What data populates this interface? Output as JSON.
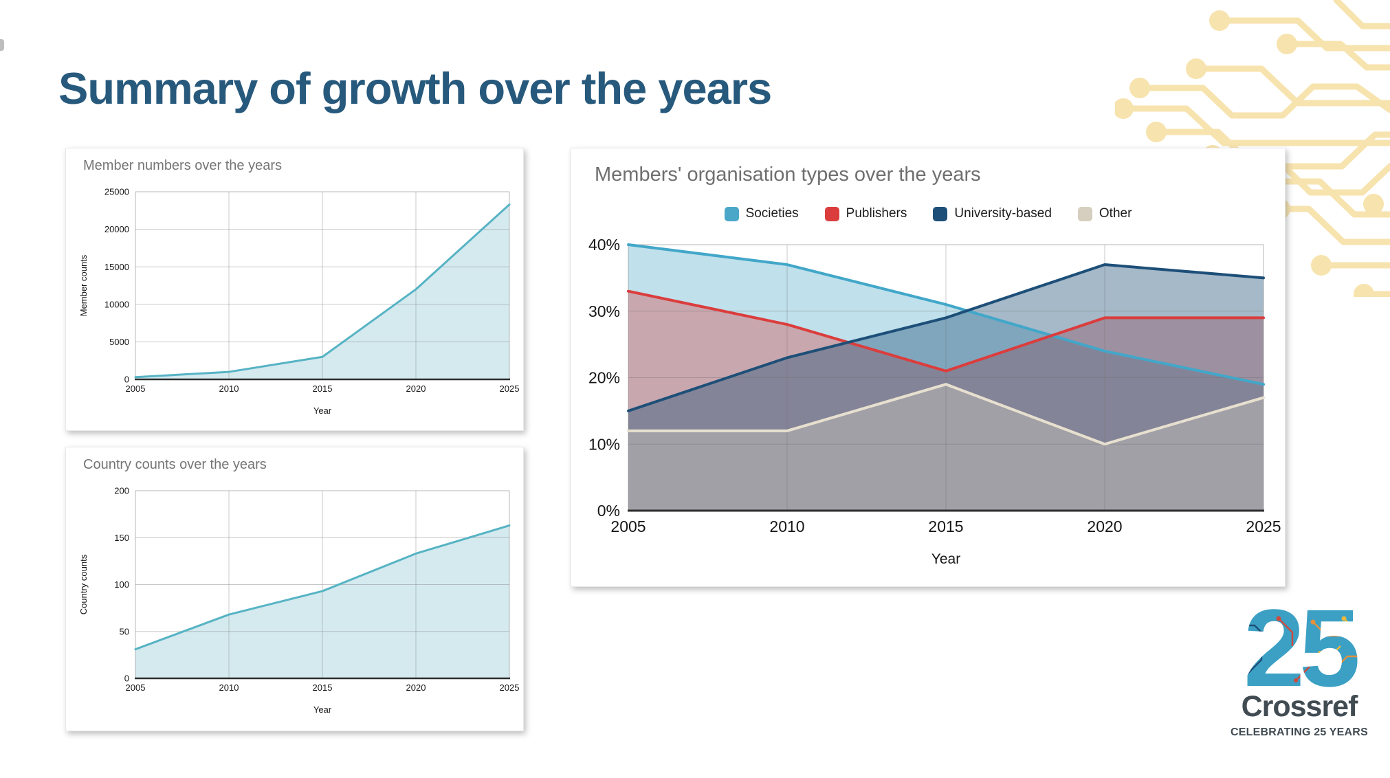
{
  "slide": {
    "title": "Summary of growth over the years"
  },
  "palette": {
    "title_color": "#27597c",
    "chart_title_gray": "#757575",
    "crossref_teal": "#3ba0c4",
    "crossref_dark": "#414b52",
    "circuit_yellow": "#f7e3ae"
  },
  "logo": {
    "number": "25",
    "wordmark": "Crossref",
    "tagline": "CELEBRATING 25 YEARS"
  },
  "chart_data": [
    {
      "id": "member-numbers",
      "type": "area",
      "title": "Member numbers over the years",
      "xlabel": "Year",
      "ylabel": "Member counts",
      "x": [
        2005,
        2010,
        2015,
        2020,
        2025
      ],
      "ylim": [
        0,
        25000
      ],
      "yticks": [
        0,
        5000,
        10000,
        15000,
        20000,
        25000
      ],
      "ytick_suffix": "",
      "grid": true,
      "legend": "none",
      "series": [
        {
          "name": "Member counts",
          "color": "#56b3c4",
          "swatch": "#56b3c4",
          "fill": "#a9d6e0",
          "fill_opacity": 0.5,
          "values": [
            300,
            1000,
            3000,
            12000,
            23300
          ]
        }
      ]
    },
    {
      "id": "country-counts",
      "type": "area",
      "title": "Country counts over the years",
      "xlabel": "Year",
      "ylabel": "Country counts",
      "x": [
        2005,
        2010,
        2015,
        2020,
        2025
      ],
      "ylim": [
        0,
        200
      ],
      "yticks": [
        0,
        50,
        100,
        150,
        200
      ],
      "ytick_suffix": "",
      "grid": true,
      "legend": "none",
      "series": [
        {
          "name": "Country counts",
          "color": "#56b3c4",
          "swatch": "#56b3c4",
          "fill": "#a9d6e0",
          "fill_opacity": 0.5,
          "values": [
            31,
            68,
            93,
            133,
            163
          ]
        }
      ]
    },
    {
      "id": "org-types",
      "type": "area",
      "title": "Members' organisation types over the years",
      "xlabel": "Year",
      "ylabel": "",
      "x": [
        2005,
        2010,
        2015,
        2020,
        2025
      ],
      "ylim": [
        0,
        40
      ],
      "yticks": [
        0,
        10,
        20,
        30,
        40
      ],
      "ytick_suffix": "%",
      "grid": true,
      "legend": "top",
      "series": [
        {
          "name": "Societies",
          "color": "#42a7c9",
          "swatch": "#4ba7c7",
          "fill": "#4ba7c7",
          "fill_opacity": 0.35,
          "values": [
            40,
            37,
            31,
            24,
            19
          ]
        },
        {
          "name": "Publishers",
          "color": "#db3d3d",
          "swatch": "#db3d3d",
          "fill": "#db3d3d",
          "fill_opacity": 0.35,
          "values": [
            33,
            28,
            21,
            29,
            29
          ]
        },
        {
          "name": "University-based",
          "color": "#1d4f78",
          "swatch": "#1d4f78",
          "fill": "#1d4f78",
          "fill_opacity": 0.4,
          "values": [
            15,
            23,
            29,
            37,
            35
          ]
        },
        {
          "name": "Other",
          "color": "#e7e0cf",
          "swatch": "#d6cfbf",
          "fill": "#d6cfbf",
          "fill_opacity": 0.38,
          "values": [
            12,
            12,
            19,
            10,
            17
          ]
        }
      ]
    }
  ]
}
